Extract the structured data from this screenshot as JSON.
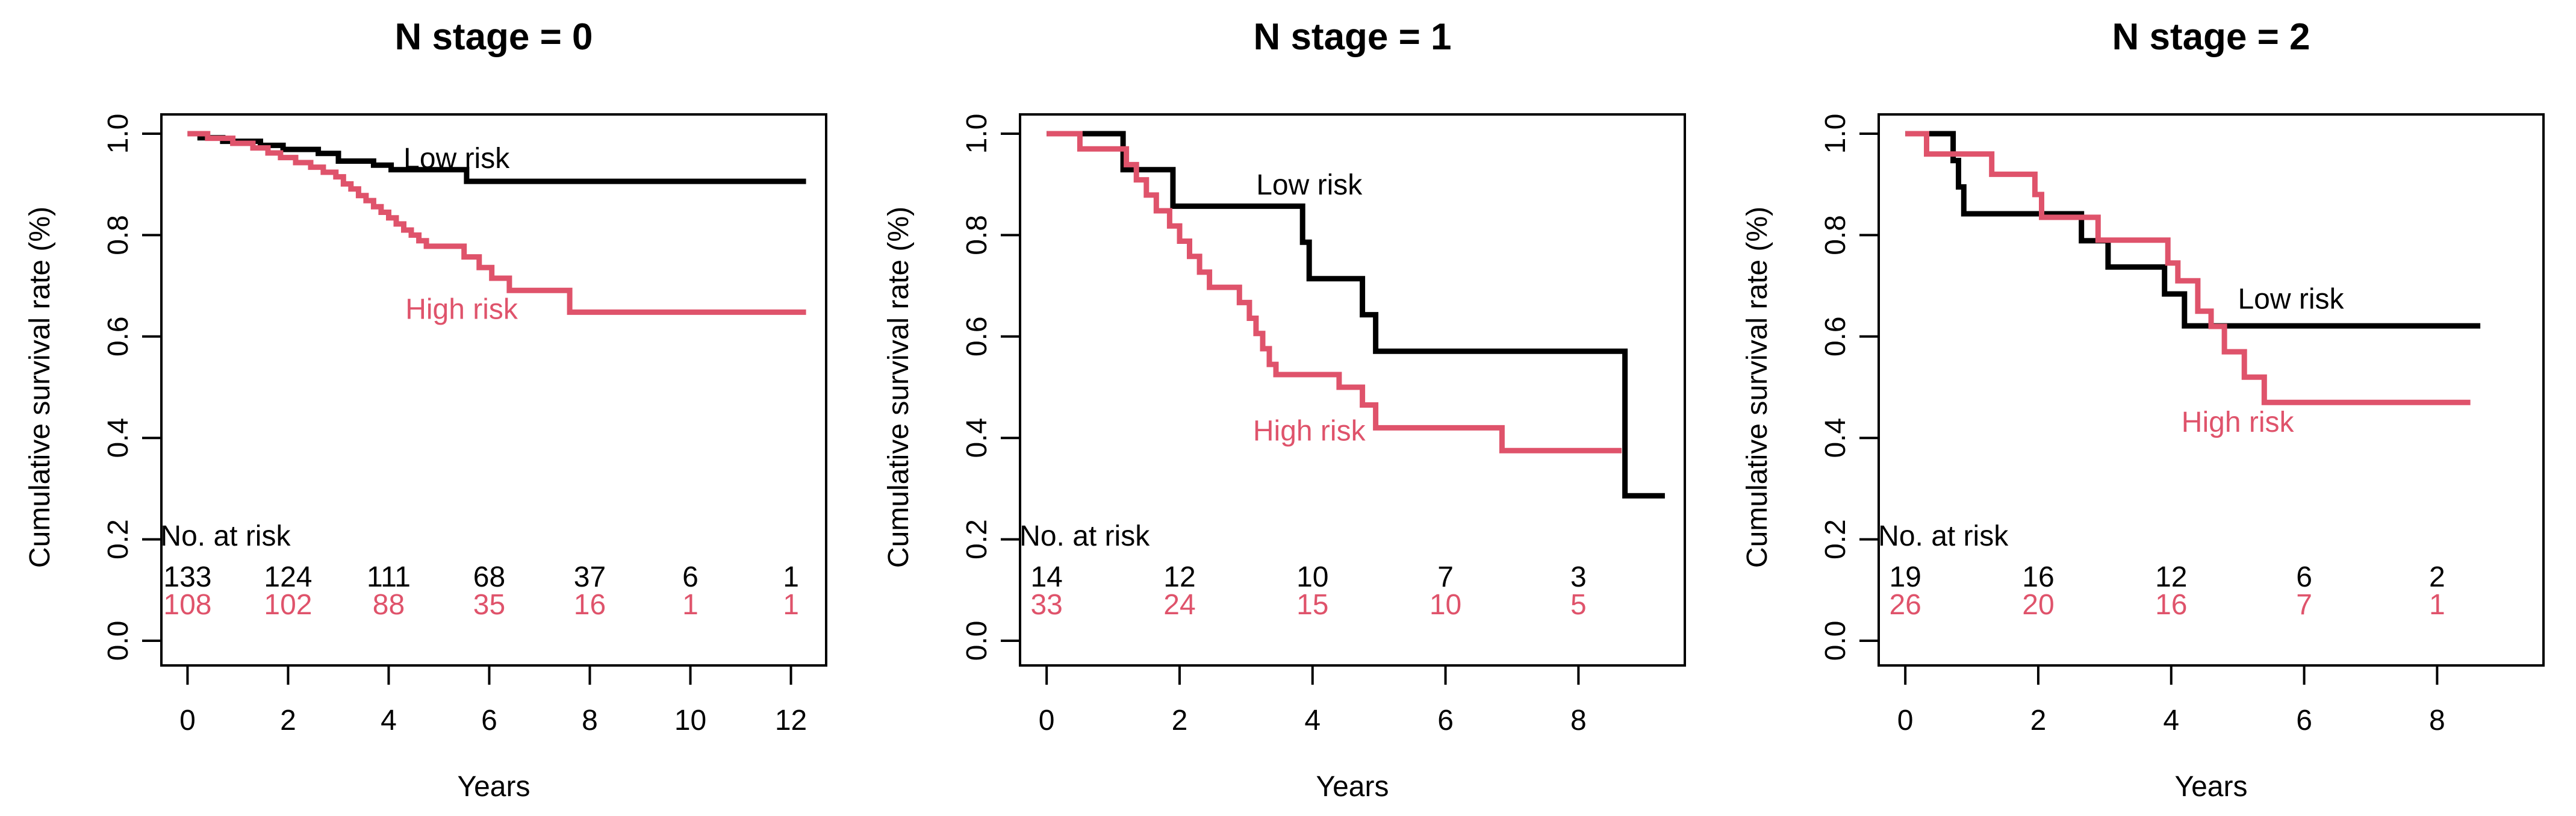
{
  "figure": {
    "background": "#ffffff",
    "low_risk_color": "#000000",
    "high_risk_color": "#DF536B"
  },
  "chart_data": [
    {
      "type": "line",
      "step": true,
      "title": "N stage = 0",
      "xlabel": "Years",
      "ylabel": "Cumulative survival rate (%)",
      "x_ticks": [
        0,
        2,
        4,
        6,
        8,
        10,
        12
      ],
      "y_ticks": [
        "0.0",
        "0.2",
        "0.4",
        "0.6",
        "0.8",
        "1.0"
      ],
      "xlim": [
        -0.52,
        12.7
      ],
      "ylim": [
        0,
        1
      ],
      "grid": false,
      "series": [
        {
          "name": "Low risk",
          "color": "#000000",
          "label": "Low risk",
          "label_pos": {
            "x": 5.35,
            "y": 0.952
          },
          "steps": [
            [
              0,
              1.0
            ],
            [
              0.25,
              0.992
            ],
            [
              0.7,
              0.985
            ],
            [
              1.45,
              0.977
            ],
            [
              1.9,
              0.969
            ],
            [
              2.6,
              0.961
            ],
            [
              3.0,
              0.946
            ],
            [
              3.7,
              0.938
            ],
            [
              4.05,
              0.929
            ],
            [
              5.55,
              0.906
            ],
            [
              12.3,
              0.906
            ]
          ]
        },
        {
          "name": "High risk",
          "color": "#DF536B",
          "label": "High risk",
          "label_pos": {
            "x": 5.45,
            "y": 0.655
          },
          "steps": [
            [
              0,
              1.0
            ],
            [
              0.4,
              0.991
            ],
            [
              0.9,
              0.981
            ],
            [
              1.3,
              0.972
            ],
            [
              1.6,
              0.962
            ],
            [
              1.85,
              0.953
            ],
            [
              2.15,
              0.943
            ],
            [
              2.45,
              0.934
            ],
            [
              2.7,
              0.924
            ],
            [
              2.95,
              0.915
            ],
            [
              3.1,
              0.901
            ],
            [
              3.25,
              0.891
            ],
            [
              3.4,
              0.878
            ],
            [
              3.55,
              0.868
            ],
            [
              3.7,
              0.856
            ],
            [
              3.85,
              0.845
            ],
            [
              4.0,
              0.834
            ],
            [
              4.15,
              0.822
            ],
            [
              4.3,
              0.81
            ],
            [
              4.45,
              0.8
            ],
            [
              4.6,
              0.789
            ],
            [
              4.75,
              0.778
            ],
            [
              5.5,
              0.757
            ],
            [
              5.8,
              0.736
            ],
            [
              6.05,
              0.715
            ],
            [
              6.4,
              0.691
            ],
            [
              7.6,
              0.648
            ],
            [
              12.3,
              0.648
            ]
          ]
        }
      ],
      "at_risk": {
        "header": "No. at risk",
        "times": [
          0,
          2,
          4,
          6,
          8,
          10,
          12
        ],
        "rows": [
          {
            "name": "Low risk",
            "color": "#000000",
            "counts": [
              "133",
              "124",
              "111",
              "68",
              "37",
              "6",
              "1"
            ]
          },
          {
            "name": "High risk",
            "color": "#DF536B",
            "counts": [
              "108",
              "102",
              "88",
              "35",
              "16",
              "1",
              "1"
            ]
          }
        ]
      }
    },
    {
      "type": "line",
      "step": true,
      "title": "N stage = 1",
      "xlabel": "Years",
      "ylabel": "Cumulative survival rate (%)",
      "x_ticks": [
        0,
        2,
        4,
        6,
        8
      ],
      "y_ticks": [
        "0.0",
        "0.2",
        "0.4",
        "0.6",
        "0.8",
        "1.0"
      ],
      "xlim": [
        -0.4,
        9.6
      ],
      "ylim": [
        0,
        1
      ],
      "grid": false,
      "series": [
        {
          "name": "Low risk",
          "color": "#000000",
          "label": "Low risk",
          "label_pos": {
            "x": 3.95,
            "y": 0.9
          },
          "steps": [
            [
              0,
              1.0
            ],
            [
              1.15,
              0.929
            ],
            [
              1.9,
              0.857
            ],
            [
              3.85,
              0.786
            ],
            [
              3.95,
              0.714
            ],
            [
              4.75,
              0.643
            ],
            [
              4.95,
              0.571
            ],
            [
              8.7,
              0.286
            ],
            [
              9.3,
              0.286
            ]
          ]
        },
        {
          "name": "High risk",
          "color": "#DF536B",
          "label": "High risk",
          "label_pos": {
            "x": 3.95,
            "y": 0.415
          },
          "steps": [
            [
              0,
              1.0
            ],
            [
              0.5,
              0.97
            ],
            [
              1.2,
              0.939
            ],
            [
              1.35,
              0.909
            ],
            [
              1.5,
              0.879
            ],
            [
              1.65,
              0.848
            ],
            [
              1.85,
              0.818
            ],
            [
              2.0,
              0.788
            ],
            [
              2.15,
              0.758
            ],
            [
              2.3,
              0.727
            ],
            [
              2.45,
              0.697
            ],
            [
              2.9,
              0.667
            ],
            [
              3.05,
              0.636
            ],
            [
              3.15,
              0.606
            ],
            [
              3.25,
              0.576
            ],
            [
              3.35,
              0.545
            ],
            [
              3.45,
              0.525
            ],
            [
              4.4,
              0.5
            ],
            [
              4.75,
              0.465
            ],
            [
              4.95,
              0.42
            ],
            [
              6.85,
              0.375
            ],
            [
              8.65,
              0.375
            ]
          ]
        }
      ],
      "at_risk": {
        "header": "No. at risk",
        "times": [
          0,
          2,
          4,
          6,
          8
        ],
        "rows": [
          {
            "name": "Low risk",
            "color": "#000000",
            "counts": [
              "14",
              "12",
              "10",
              "7",
              "3"
            ]
          },
          {
            "name": "High risk",
            "color": "#DF536B",
            "counts": [
              "33",
              "24",
              "15",
              "10",
              "5"
            ]
          }
        ]
      }
    },
    {
      "type": "line",
      "step": true,
      "title": "N stage = 2",
      "xlabel": "Years",
      "ylabel": "Cumulative survival rate (%)",
      "x_ticks": [
        0,
        2,
        4,
        6,
        8
      ],
      "y_ticks": [
        "0.0",
        "0.2",
        "0.4",
        "0.6",
        "0.8",
        "1.0"
      ],
      "xlim": [
        -0.4,
        9.6
      ],
      "ylim": [
        0,
        1
      ],
      "grid": false,
      "series": [
        {
          "name": "Low risk",
          "color": "#000000",
          "label": "Low risk",
          "label_pos": {
            "x": 5.8,
            "y": 0.675
          },
          "steps": [
            [
              0,
              1.0
            ],
            [
              0.72,
              0.947
            ],
            [
              0.8,
              0.895
            ],
            [
              0.88,
              0.842
            ],
            [
              2.65,
              0.789
            ],
            [
              3.05,
              0.737
            ],
            [
              3.9,
              0.684
            ],
            [
              4.2,
              0.621
            ],
            [
              8.65,
              0.621
            ]
          ]
        },
        {
          "name": "High risk",
          "color": "#DF536B",
          "label": "High risk",
          "label_pos": {
            "x": 5.0,
            "y": 0.432
          },
          "steps": [
            [
              0,
              1.0
            ],
            [
              0.32,
              0.96
            ],
            [
              1.3,
              0.92
            ],
            [
              1.95,
              0.88
            ],
            [
              2.05,
              0.835
            ],
            [
              2.9,
              0.79
            ],
            [
              3.95,
              0.745
            ],
            [
              4.1,
              0.71
            ],
            [
              4.4,
              0.65
            ],
            [
              4.6,
              0.62
            ],
            [
              4.8,
              0.57
            ],
            [
              5.1,
              0.52
            ],
            [
              5.4,
              0.47
            ],
            [
              8.5,
              0.47
            ]
          ]
        }
      ],
      "at_risk": {
        "header": "No. at risk",
        "times": [
          0,
          2,
          4,
          6,
          8
        ],
        "rows": [
          {
            "name": "Low risk",
            "color": "#000000",
            "counts": [
              "19",
              "16",
              "12",
              "6",
              "2"
            ]
          },
          {
            "name": "High risk",
            "color": "#DF536B",
            "counts": [
              "26",
              "20",
              "16",
              "7",
              "1"
            ]
          }
        ]
      }
    }
  ]
}
